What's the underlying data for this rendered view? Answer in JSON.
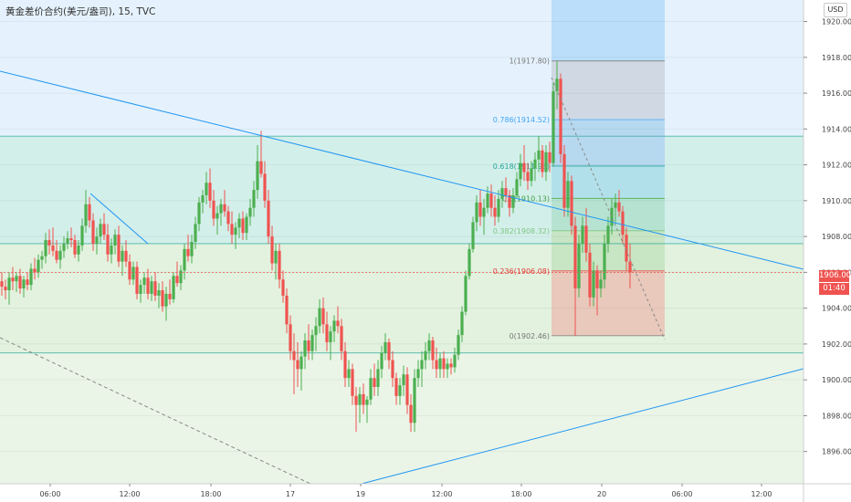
{
  "header": {
    "title": "黄金差价合约(美元/盎司), 15, TVC",
    "currency": "USD"
  },
  "price_tags": {
    "last_price": "1906.00",
    "countdown": "01:40"
  },
  "colors": {
    "up": "#4caf50",
    "down": "#ef5350",
    "trendline": "#2196f3",
    "fib_top": "#90caf9"
  },
  "chart_data": {
    "type": "candlestick",
    "title": "黄金差价合约(美元/盎司), 15, TVC",
    "ylim": [
      1894.2,
      1921.2
    ],
    "y_ticks": [
      1896,
      1898,
      1900,
      1902,
      1904,
      1906,
      1908,
      1910,
      1912,
      1914,
      1916,
      1918,
      1920
    ],
    "x_ticks": [
      "06:00",
      "12:00",
      "18:00",
      "17",
      "19",
      "12:00",
      "18:00",
      "20",
      "06:00",
      "12:00"
    ],
    "last_price": 1906.0,
    "fibonacci": [
      {
        "ratio": "1",
        "price": 1917.8,
        "label": "1(1917.80)"
      },
      {
        "ratio": "0.786",
        "price": 1914.52,
        "label": "0.786(1914.52)"
      },
      {
        "ratio": "0.618",
        "price": 1911.93,
        "label": "0.618(1911.93)"
      },
      {
        "ratio": "0.5",
        "price": 1910.13,
        "label": "0.5(1910.13)"
      },
      {
        "ratio": "0.382",
        "price": 1908.32,
        "label": "0.382(1908.32)"
      },
      {
        "ratio": "0.236",
        "price": 1906.08,
        "label": "0.236(1906.08)"
      },
      {
        "ratio": "0",
        "price": 1902.46,
        "label": "0(1902.46)"
      }
    ],
    "horizontal_levels": [
      1913.6,
      1907.6,
      1901.5
    ],
    "candles": [
      [
        1905.5,
        1906.0,
        1904.7,
        1905.2
      ],
      [
        1905.2,
        1905.6,
        1904.5,
        1905.0
      ],
      [
        1905.0,
        1906.0,
        1904.2,
        1905.7
      ],
      [
        1905.7,
        1906.3,
        1905.0,
        1905.5
      ],
      [
        1905.5,
        1906.0,
        1904.9,
        1905.8
      ],
      [
        1905.8,
        1906.2,
        1904.8,
        1905.1
      ],
      [
        1905.1,
        1905.8,
        1904.6,
        1905.6
      ],
      [
        1905.6,
        1906.0,
        1905.0,
        1905.3
      ],
      [
        1905.3,
        1906.5,
        1905.0,
        1906.2
      ],
      [
        1906.2,
        1906.8,
        1905.6,
        1906.0
      ],
      [
        1906.0,
        1907.0,
        1905.7,
        1906.7
      ],
      [
        1906.7,
        1907.2,
        1906.2,
        1906.9
      ],
      [
        1906.9,
        1908.2,
        1906.5,
        1907.8
      ],
      [
        1907.8,
        1908.4,
        1907.0,
        1907.5
      ],
      [
        1907.5,
        1908.5,
        1906.9,
        1907.2
      ],
      [
        1907.2,
        1907.8,
        1906.5,
        1906.7
      ],
      [
        1906.7,
        1907.5,
        1906.2,
        1907.2
      ],
      [
        1907.2,
        1908.0,
        1906.8,
        1907.6
      ],
      [
        1907.6,
        1908.3,
        1907.3,
        1907.9
      ],
      [
        1907.9,
        1908.5,
        1907.4,
        1907.8
      ],
      [
        1907.8,
        1908.1,
        1906.8,
        1907.0
      ],
      [
        1907.0,
        1907.8,
        1906.6,
        1907.5
      ],
      [
        1907.5,
        1909.0,
        1907.2,
        1908.6
      ],
      [
        1908.6,
        1910.6,
        1908.2,
        1909.8
      ],
      [
        1909.8,
        1910.2,
        1908.5,
        1908.9
      ],
      [
        1908.9,
        1909.3,
        1907.2,
        1907.6
      ],
      [
        1907.6,
        1908.5,
        1907.0,
        1908.0
      ],
      [
        1908.0,
        1909.0,
        1907.6,
        1908.7
      ],
      [
        1908.7,
        1909.3,
        1907.8,
        1908.1
      ],
      [
        1908.1,
        1908.7,
        1906.6,
        1907.0
      ],
      [
        1907.0,
        1907.9,
        1906.5,
        1907.5
      ],
      [
        1907.5,
        1908.4,
        1907.0,
        1908.1
      ],
      [
        1908.1,
        1908.6,
        1906.3,
        1906.6
      ],
      [
        1906.6,
        1907.5,
        1905.8,
        1907.2
      ],
      [
        1907.2,
        1907.8,
        1906.3,
        1906.6
      ],
      [
        1906.6,
        1907.0,
        1905.3,
        1905.6
      ],
      [
        1905.6,
        1906.6,
        1905.3,
        1906.3
      ],
      [
        1906.3,
        1906.6,
        1904.5,
        1904.8
      ],
      [
        1904.8,
        1905.6,
        1904.3,
        1905.3
      ],
      [
        1905.3,
        1906.0,
        1904.8,
        1905.7
      ],
      [
        1905.7,
        1906.2,
        1904.5,
        1904.8
      ],
      [
        1904.8,
        1905.8,
        1904.4,
        1905.5
      ],
      [
        1905.5,
        1906.0,
        1904.4,
        1904.7
      ],
      [
        1904.7,
        1905.4,
        1904.0,
        1905.0
      ],
      [
        1905.0,
        1905.5,
        1903.8,
        1904.1
      ],
      [
        1904.1,
        1905.2,
        1903.3,
        1904.8
      ],
      [
        1904.8,
        1905.6,
        1904.2,
        1904.5
      ],
      [
        1904.5,
        1906.0,
        1904.3,
        1905.8
      ],
      [
        1905.8,
        1906.6,
        1905.2,
        1905.4
      ],
      [
        1905.4,
        1906.4,
        1905.0,
        1906.1
      ],
      [
        1906.1,
        1907.6,
        1905.6,
        1907.3
      ],
      [
        1907.3,
        1908.1,
        1906.6,
        1906.9
      ],
      [
        1906.9,
        1908.1,
        1906.5,
        1907.7
      ],
      [
        1907.7,
        1909.1,
        1907.3,
        1908.7
      ],
      [
        1908.7,
        1910.2,
        1908.3,
        1909.9
      ],
      [
        1909.9,
        1910.6,
        1909.3,
        1910.3
      ],
      [
        1910.3,
        1911.6,
        1909.8,
        1911.0
      ],
      [
        1911.0,
        1911.8,
        1909.6,
        1910.0
      ],
      [
        1910.0,
        1910.6,
        1908.6,
        1909.0
      ],
      [
        1909.0,
        1909.7,
        1908.1,
        1909.3
      ],
      [
        1909.3,
        1910.1,
        1908.6,
        1909.8
      ],
      [
        1909.8,
        1910.6,
        1909.1,
        1909.4
      ],
      [
        1909.4,
        1909.7,
        1908.3,
        1908.7
      ],
      [
        1908.7,
        1909.4,
        1907.6,
        1908.1
      ],
      [
        1908.1,
        1908.8,
        1907.3,
        1908.5
      ],
      [
        1908.5,
        1909.3,
        1907.9,
        1909.0
      ],
      [
        1909.0,
        1909.4,
        1907.8,
        1908.2
      ],
      [
        1908.2,
        1909.3,
        1907.8,
        1909.1
      ],
      [
        1909.1,
        1910.1,
        1908.6,
        1909.6
      ],
      [
        1909.6,
        1911.1,
        1909.1,
        1910.6
      ],
      [
        1910.6,
        1913.1,
        1910.1,
        1912.2
      ],
      [
        1912.2,
        1913.9,
        1911.3,
        1911.5
      ],
      [
        1911.5,
        1912.2,
        1909.6,
        1910.0
      ],
      [
        1910.0,
        1910.6,
        1907.6,
        1908.0
      ],
      [
        1908.0,
        1908.6,
        1906.1,
        1906.5
      ],
      [
        1906.5,
        1907.6,
        1905.6,
        1907.2
      ],
      [
        1907.2,
        1907.6,
        1905.1,
        1905.6
      ],
      [
        1905.6,
        1906.1,
        1904.3,
        1904.7
      ],
      [
        1904.7,
        1905.1,
        1902.6,
        1903.1
      ],
      [
        1903.1,
        1903.6,
        1901.1,
        1901.6
      ],
      [
        1901.6,
        1902.6,
        1899.2,
        1901.1
      ],
      [
        1901.1,
        1902.1,
        1899.6,
        1900.6
      ],
      [
        1900.6,
        1901.6,
        1899.4,
        1901.3
      ],
      [
        1901.3,
        1902.6,
        1900.6,
        1902.2
      ],
      [
        1902.2,
        1903.1,
        1901.1,
        1901.6
      ],
      [
        1901.6,
        1902.8,
        1901.1,
        1902.5
      ],
      [
        1902.5,
        1903.5,
        1901.6,
        1903.0
      ],
      [
        1903.0,
        1904.5,
        1902.6,
        1904.0
      ],
      [
        1904.0,
        1904.6,
        1902.6,
        1903.1
      ],
      [
        1903.1,
        1903.8,
        1901.6,
        1902.1
      ],
      [
        1902.1,
        1903.0,
        1901.1,
        1902.7
      ],
      [
        1902.7,
        1903.6,
        1902.1,
        1903.3
      ],
      [
        1903.3,
        1904.1,
        1902.6,
        1903.0
      ],
      [
        1903.0,
        1903.4,
        1901.1,
        1901.6
      ],
      [
        1901.6,
        1902.1,
        1899.6,
        1900.1
      ],
      [
        1900.1,
        1901.1,
        1899.6,
        1900.6
      ],
      [
        1900.6,
        1900.9,
        1898.6,
        1899.1
      ],
      [
        1899.1,
        1899.6,
        1897.1,
        1898.6
      ],
      [
        1898.6,
        1899.6,
        1897.6,
        1899.2
      ],
      [
        1899.2,
        1899.8,
        1898.1,
        1898.6
      ],
      [
        1898.6,
        1899.1,
        1897.6,
        1898.9
      ],
      [
        1898.9,
        1900.6,
        1898.6,
        1900.1
      ],
      [
        1900.1,
        1900.9,
        1899.1,
        1899.6
      ],
      [
        1899.6,
        1901.1,
        1899.1,
        1900.6
      ],
      [
        1900.6,
        1901.9,
        1900.1,
        1901.5
      ],
      [
        1901.5,
        1902.6,
        1901.1,
        1902.1
      ],
      [
        1902.1,
        1902.3,
        1900.6,
        1901.1
      ],
      [
        1901.1,
        1901.6,
        1899.6,
        1900.1
      ],
      [
        1900.1,
        1900.4,
        1898.6,
        1899.1
      ],
      [
        1899.1,
        1900.1,
        1898.6,
        1899.7
      ],
      [
        1899.7,
        1900.8,
        1899.1,
        1900.3
      ],
      [
        1900.3,
        1900.7,
        1898.1,
        1898.6
      ],
      [
        1898.6,
        1899.2,
        1897.1,
        1897.6
      ],
      [
        1897.6,
        1900.6,
        1897.1,
        1900.1
      ],
      [
        1900.1,
        1901.1,
        1899.6,
        1900.6
      ],
      [
        1900.6,
        1901.6,
        1899.6,
        1901.1
      ],
      [
        1901.1,
        1902.1,
        1900.6,
        1901.6
      ],
      [
        1901.6,
        1902.6,
        1901.1,
        1902.2
      ],
      [
        1902.2,
        1902.4,
        1900.6,
        1901.1
      ],
      [
        1901.1,
        1901.8,
        1900.1,
        1900.6
      ],
      [
        1900.6,
        1901.5,
        1900.1,
        1901.2
      ],
      [
        1901.2,
        1901.6,
        1900.1,
        1900.6
      ],
      [
        1900.6,
        1901.2,
        1900.1,
        1900.9
      ],
      [
        1900.9,
        1901.2,
        1900.3,
        1900.7
      ],
      [
        1900.7,
        1901.8,
        1900.4,
        1901.4
      ],
      [
        1901.4,
        1902.8,
        1901.1,
        1902.5
      ],
      [
        1902.5,
        1904.1,
        1902.1,
        1903.8
      ],
      [
        1903.8,
        1906.1,
        1903.6,
        1905.8
      ],
      [
        1905.8,
        1907.6,
        1905.6,
        1907.3
      ],
      [
        1907.3,
        1909.1,
        1907.1,
        1908.8
      ],
      [
        1908.8,
        1910.3,
        1908.3,
        1909.9
      ],
      [
        1909.9,
        1910.6,
        1908.6,
        1909.1
      ],
      [
        1909.1,
        1910.1,
        1908.1,
        1909.6
      ],
      [
        1909.6,
        1910.8,
        1909.3,
        1910.4
      ],
      [
        1910.4,
        1910.9,
        1909.1,
        1909.6
      ],
      [
        1909.6,
        1910.3,
        1908.6,
        1909.1
      ],
      [
        1909.1,
        1910.6,
        1908.8,
        1910.1
      ],
      [
        1910.1,
        1911.1,
        1909.6,
        1910.7
      ],
      [
        1910.7,
        1911.3,
        1909.9,
        1910.3
      ],
      [
        1910.3,
        1910.6,
        1909.1,
        1909.6
      ],
      [
        1909.6,
        1910.7,
        1909.3,
        1910.3
      ],
      [
        1910.3,
        1911.6,
        1910.1,
        1911.2
      ],
      [
        1911.2,
        1912.6,
        1910.8,
        1912.1
      ],
      [
        1912.1,
        1913.1,
        1911.1,
        1911.6
      ],
      [
        1911.6,
        1912.1,
        1910.6,
        1911.1
      ],
      [
        1911.1,
        1912.2,
        1910.8,
        1911.8
      ],
      [
        1911.8,
        1912.7,
        1911.1,
        1912.3
      ],
      [
        1912.3,
        1913.6,
        1911.6,
        1912.8
      ],
      [
        1912.8,
        1913.1,
        1911.3,
        1911.6
      ],
      [
        1911.6,
        1913.1,
        1911.1,
        1912.7
      ],
      [
        1912.7,
        1913.3,
        1911.6,
        1912.1
      ],
      [
        1912.1,
        1916.6,
        1911.9,
        1916.1
      ],
      [
        1916.1,
        1917.8,
        1915.1,
        1916.8
      ],
      [
        1916.8,
        1917.1,
        1912.1,
        1912.6
      ],
      [
        1912.6,
        1913.1,
        1909.1,
        1909.6
      ],
      [
        1909.6,
        1911.6,
        1909.1,
        1911.1
      ],
      [
        1911.1,
        1911.4,
        1908.1,
        1908.6
      ],
      [
        1908.6,
        1909.1,
        1902.46,
        1905.1
      ],
      [
        1905.1,
        1908.1,
        1904.6,
        1907.6
      ],
      [
        1907.6,
        1909.1,
        1907.1,
        1908.6
      ],
      [
        1908.6,
        1909.6,
        1906.6,
        1907.1
      ],
      [
        1907.1,
        1907.6,
        1904.1,
        1904.6
      ],
      [
        1904.6,
        1906.6,
        1904.1,
        1906.1
      ],
      [
        1906.1,
        1906.4,
        1903.6,
        1905.1
      ],
      [
        1905.1,
        1906.1,
        1904.6,
        1905.6
      ],
      [
        1905.6,
        1908.1,
        1905.1,
        1907.6
      ],
      [
        1907.6,
        1909.1,
        1907.1,
        1908.6
      ],
      [
        1908.6,
        1910.1,
        1908.1,
        1909.6
      ],
      [
        1909.6,
        1910.4,
        1908.8,
        1909.9
      ],
      [
        1909.9,
        1910.6,
        1909.1,
        1909.4
      ],
      [
        1909.4,
        1909.7,
        1907.6,
        1908.1
      ],
      [
        1908.1,
        1908.5,
        1906.1,
        1906.6
      ],
      [
        1906.6,
        1907.6,
        1905.1,
        1906.0
      ]
    ]
  }
}
